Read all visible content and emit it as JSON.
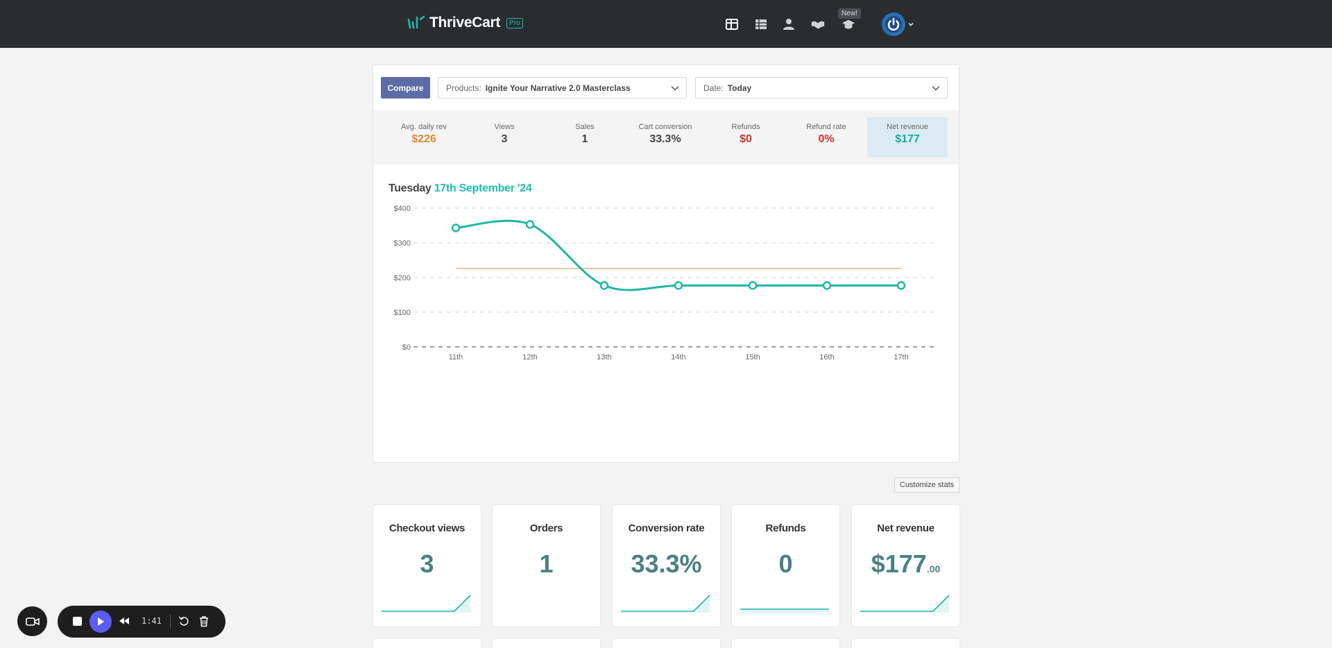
{
  "header": {
    "brand": "ThriveCart",
    "brand_badge": "Pro",
    "new_badge": "New!",
    "nav_icons": [
      "dashboard-icon",
      "list-icon",
      "user-icon",
      "handshake-icon",
      "graduation-cap-icon"
    ]
  },
  "filters": {
    "compare_label": "Compare",
    "products_label": "Products:",
    "products_value": "Ignite Your Narrative 2.0 Masterclass",
    "date_label": "Date:",
    "date_value": "Today"
  },
  "summary": [
    {
      "label": "Avg. daily rev",
      "value": "$226",
      "color": "#e08a2c"
    },
    {
      "label": "Views",
      "value": "3",
      "color": "#444444"
    },
    {
      "label": "Sales",
      "value": "1",
      "color": "#444444"
    },
    {
      "label": "Cart conversion",
      "value": "33.3%",
      "color": "#444444"
    },
    {
      "label": "Refunds",
      "value": "$0",
      "color": "#d0312d"
    },
    {
      "label": "Refund rate",
      "value": "0%",
      "color": "#d0312d"
    },
    {
      "label": "Net revenue",
      "value": "$177",
      "color": "#1fa89c"
    }
  ],
  "chart_heading": {
    "day": "Tuesday",
    "date": "17th September '24"
  },
  "chart_data": {
    "type": "line",
    "categories": [
      "11th",
      "12th",
      "13th",
      "14th",
      "15th",
      "16th",
      "17th"
    ],
    "series": [
      {
        "values": [
          343,
          353,
          177,
          177,
          177,
          177,
          177
        ],
        "color": "#1fb5a8"
      },
      {
        "values": [
          226,
          226,
          226,
          226,
          226,
          226,
          226
        ],
        "color": "#f4b183"
      }
    ],
    "y_ticks": [
      "$400",
      "$300",
      "$200",
      "$100",
      "$0"
    ],
    "ylim": [
      0,
      400
    ],
    "grid": true
  },
  "customize_label": "Customize stats",
  "cards": [
    {
      "title": "Checkout views",
      "value": "3",
      "cents": "",
      "spark": "rise"
    },
    {
      "title": "Orders",
      "value": "1",
      "cents": "",
      "spark": "none"
    },
    {
      "title": "Conversion rate",
      "value": "33.3%",
      "cents": "",
      "spark": "rise"
    },
    {
      "title": "Refunds",
      "value": "0",
      "cents": "",
      "spark": "flat"
    },
    {
      "title": "Net revenue",
      "value": "$177",
      "cents": ".00",
      "spark": "rise"
    }
  ],
  "recorder": {
    "time": "1:41"
  },
  "colors": {
    "accent": "#1fbcb0",
    "header_bg": "#2a2d30",
    "compare": "#5c6ca6",
    "recorder_play": "#5b5cf0"
  }
}
